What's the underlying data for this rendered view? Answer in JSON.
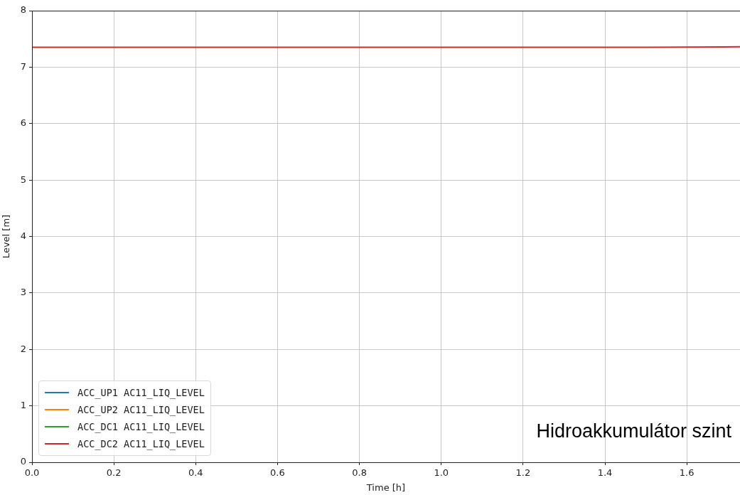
{
  "chart_data": {
    "type": "line",
    "xlabel": "Time [h]",
    "ylabel": "Level [m]",
    "x": [
      0,
      1.5,
      1.73
    ],
    "series": [
      {
        "name": "ACC_UP1 AC11_LIQ_LEVEL",
        "color": "#1f77b4",
        "values": [
          null,
          null,
          null
        ]
      },
      {
        "name": "ACC_UP2 AC11_LIQ_LEVEL",
        "color": "#ff7f0e",
        "values": [
          null,
          null,
          null
        ]
      },
      {
        "name": "ACC_DC1 AC11_LIQ_LEVEL",
        "color": "#2ca02c",
        "values": [
          null,
          null,
          null
        ]
      },
      {
        "name": "ACC_DC2 AC11_LIQ_LEVEL",
        "color": "#d62728",
        "values": [
          7.35,
          7.35,
          7.36
        ]
      }
    ],
    "xlim": [
      0,
      1.73
    ],
    "xticks": [
      {
        "value": 0,
        "label": "0.0"
      },
      0.2,
      0.4,
      0.6,
      0.8,
      {
        "value": 1,
        "label": "1.0"
      },
      1.2,
      1.4,
      1.6
    ],
    "ylim": [
      0,
      8
    ],
    "yticks": [
      0,
      1,
      2,
      3,
      4,
      5,
      6,
      7,
      8
    ],
    "grid": true,
    "legend": "bottom left",
    "line_style": "solid",
    "marker": "none",
    "annotations": [
      "Hidroakkumulátor szint"
    ]
  }
}
